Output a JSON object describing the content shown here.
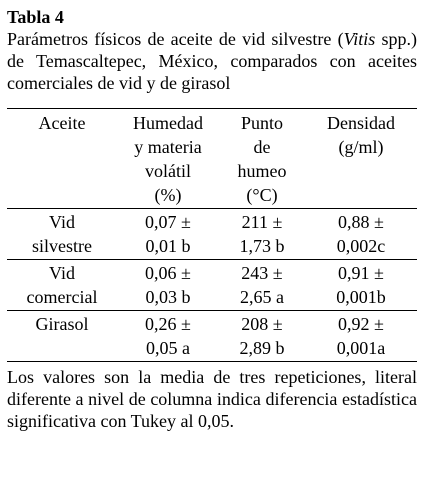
{
  "table_label": "Tabla 4",
  "caption": {
    "before_italic": "Parámetros físicos de aceite de vid silvestre (",
    "italic": "Vitis",
    "after_italic": " spp.) de Temascaltepec, México, comparados con aceites comerciales de vid y de girasol"
  },
  "headers": [
    [
      "Aceite"
    ],
    [
      "Humedad",
      "y materia",
      "volátil",
      "(%)"
    ],
    [
      "Punto",
      "de",
      "humeo",
      "(°C)"
    ],
    [
      "Densidad",
      "(g/ml)"
    ]
  ],
  "rows": [
    {
      "name": [
        "Vid",
        "silvestre"
      ],
      "humedad": [
        "0,07 ±",
        "0,01 b"
      ],
      "punto": [
        "211 ±",
        "1,73 b"
      ],
      "densidad": [
        "0,88 ±",
        "0,002c"
      ]
    },
    {
      "name": [
        "Vid",
        "comercial"
      ],
      "humedad": [
        "0,06 ±",
        "0,03 b"
      ],
      "punto": [
        "243 ±",
        "2,65 a"
      ],
      "densidad": [
        "0,91 ±",
        "0,001b"
      ]
    },
    {
      "name": [
        "Girasol"
      ],
      "humedad": [
        "0,26 ±",
        "0,05 a"
      ],
      "punto": [
        "208 ±",
        "2,89 b"
      ],
      "densidad": [
        "0,92 ±",
        "0,001a"
      ]
    }
  ],
  "footnote": "Los valores son la media de tres repeticiones, literal diferente a nivel de columna indica diferencia estadística significativa con Tukey al 0,05."
}
